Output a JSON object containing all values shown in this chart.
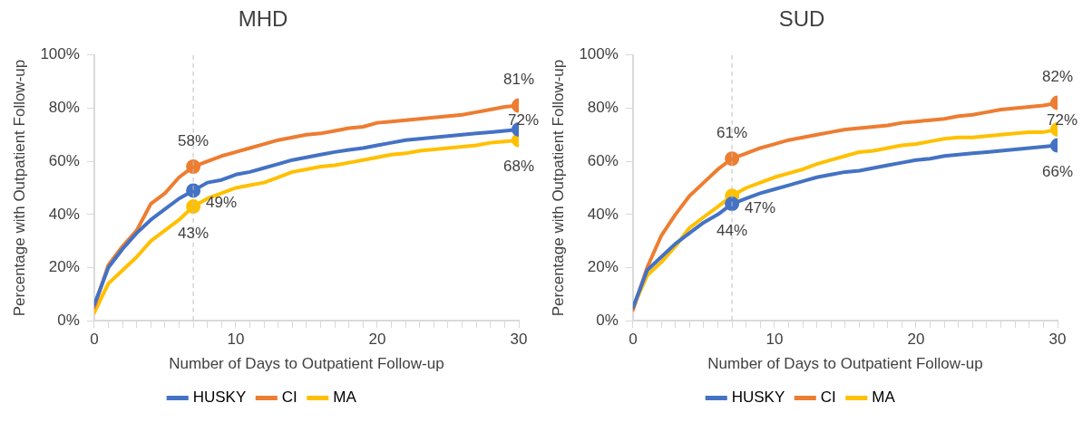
{
  "chart_data": [
    {
      "type": "line",
      "title": "MHD",
      "xlabel": "Number of Days to Outpatient Follow-up",
      "ylabel": "Percentage with Outpatient Follow-up",
      "x": [
        0,
        1,
        2,
        3,
        4,
        5,
        6,
        7,
        8,
        9,
        10,
        11,
        12,
        13,
        14,
        15,
        16,
        17,
        18,
        19,
        20,
        21,
        22,
        23,
        24,
        25,
        26,
        27,
        28,
        29,
        30
      ],
      "xlim": [
        0,
        30
      ],
      "xticks": [
        0,
        {
          "value": 1,
          "label": null
        },
        {
          "value": 2,
          "label": null
        },
        {
          "value": 3,
          "label": null
        },
        {
          "value": 4,
          "label": null
        },
        {
          "value": 5,
          "label": null
        },
        {
          "value": 6,
          "label": null
        },
        {
          "value": 7,
          "label": null
        },
        {
          "value": 8,
          "label": null
        },
        {
          "value": 9,
          "label": null
        },
        10,
        {
          "value": 11,
          "label": null
        },
        {
          "value": 12,
          "label": null
        },
        {
          "value": 13,
          "label": null
        },
        {
          "value": 14,
          "label": null
        },
        {
          "value": 15,
          "label": null
        },
        {
          "value": 16,
          "label": null
        },
        {
          "value": 17,
          "label": null
        },
        {
          "value": 18,
          "label": null
        },
        {
          "value": 19,
          "label": null
        },
        20,
        {
          "value": 21,
          "label": null
        },
        {
          "value": 22,
          "label": null
        },
        {
          "value": 23,
          "label": null
        },
        {
          "value": 24,
          "label": null
        },
        {
          "value": 25,
          "label": null
        },
        {
          "value": 26,
          "label": null
        },
        {
          "value": 27,
          "label": null
        },
        {
          "value": 28,
          "label": null
        },
        {
          "value": 29,
          "label": null
        },
        30
      ],
      "ylim": [
        0,
        100
      ],
      "yticks": [
        {
          "value": 0,
          "label": "0%"
        },
        {
          "value": 20,
          "label": "20%"
        },
        {
          "value": 40,
          "label": "40%"
        },
        {
          "value": 60,
          "label": "60%"
        },
        {
          "value": 80,
          "label": "80%"
        },
        {
          "value": 100,
          "label": "100%"
        }
      ],
      "grid": false,
      "legend": "bottom",
      "line_style": "solid",
      "ref_lines": [
        {
          "axis": "x",
          "value": 7,
          "label": null,
          "color": "#bfbfbf",
          "line_style": "dashed"
        }
      ],
      "series": [
        {
          "name": "HUSKY",
          "color": "#4472c4",
          "values": [
            6,
            20,
            27,
            33,
            38,
            42,
            46,
            49,
            52,
            53,
            55,
            56,
            57.5,
            59,
            60.5,
            61.5,
            62.5,
            63.5,
            64.3,
            65,
            66,
            67,
            68,
            68.5,
            69,
            69.5,
            70,
            70.5,
            71,
            71.5,
            72
          ],
          "value_labels": [
            null,
            null,
            null,
            null,
            null,
            null,
            null,
            "49%",
            null,
            null,
            null,
            null,
            null,
            null,
            null,
            null,
            null,
            null,
            null,
            null,
            null,
            null,
            null,
            null,
            null,
            null,
            null,
            null,
            null,
            null,
            "72%"
          ]
        },
        {
          "name": "CI",
          "color": "#ed7d31",
          "values": [
            5,
            21,
            28,
            34,
            44,
            48,
            54,
            58,
            60,
            62,
            63.5,
            65,
            66.5,
            68,
            69,
            70,
            70.5,
            71.5,
            72.5,
            73,
            74.5,
            75,
            75.5,
            76,
            76.5,
            77,
            77.5,
            78.5,
            79.5,
            80.5,
            81
          ],
          "value_labels": [
            null,
            null,
            null,
            null,
            null,
            null,
            null,
            "58%",
            null,
            null,
            null,
            null,
            null,
            null,
            null,
            null,
            null,
            null,
            null,
            null,
            null,
            null,
            null,
            null,
            null,
            null,
            null,
            null,
            null,
            null,
            "81%"
          ]
        },
        {
          "name": "MA",
          "color": "#ffc000",
          "values": [
            3,
            14,
            19,
            24,
            30,
            34,
            38,
            43,
            46,
            48,
            50,
            51,
            52,
            54,
            56,
            57,
            58,
            58.5,
            59.5,
            60.5,
            61.5,
            62.5,
            63,
            64,
            64.5,
            65,
            65.5,
            66,
            67,
            67.5,
            68
          ],
          "value_labels": [
            null,
            null,
            null,
            null,
            null,
            null,
            null,
            "43%",
            null,
            null,
            null,
            null,
            null,
            null,
            null,
            null,
            null,
            null,
            null,
            null,
            null,
            null,
            null,
            null,
            null,
            null,
            null,
            null,
            null,
            null,
            "68%"
          ]
        }
      ]
    },
    {
      "type": "line",
      "title": "SUD",
      "xlabel": "Number of Days to Outpatient Follow-up",
      "ylabel": "Percentage with Outpatient Follow-up",
      "x": [
        0,
        1,
        2,
        3,
        4,
        5,
        6,
        7,
        8,
        9,
        10,
        11,
        12,
        13,
        14,
        15,
        16,
        17,
        18,
        19,
        20,
        21,
        22,
        23,
        24,
        25,
        26,
        27,
        28,
        29,
        30
      ],
      "xlim": [
        0,
        30
      ],
      "xticks": [
        0,
        {
          "value": 1,
          "label": null
        },
        {
          "value": 2,
          "label": null
        },
        {
          "value": 3,
          "label": null
        },
        {
          "value": 4,
          "label": null
        },
        {
          "value": 5,
          "label": null
        },
        {
          "value": 6,
          "label": null
        },
        {
          "value": 7,
          "label": null
        },
        {
          "value": 8,
          "label": null
        },
        {
          "value": 9,
          "label": null
        },
        10,
        {
          "value": 11,
          "label": null
        },
        {
          "value": 12,
          "label": null
        },
        {
          "value": 13,
          "label": null
        },
        {
          "value": 14,
          "label": null
        },
        {
          "value": 15,
          "label": null
        },
        {
          "value": 16,
          "label": null
        },
        {
          "value": 17,
          "label": null
        },
        {
          "value": 18,
          "label": null
        },
        {
          "value": 19,
          "label": null
        },
        20,
        {
          "value": 21,
          "label": null
        },
        {
          "value": 22,
          "label": null
        },
        {
          "value": 23,
          "label": null
        },
        {
          "value": 24,
          "label": null
        },
        {
          "value": 25,
          "label": null
        },
        {
          "value": 26,
          "label": null
        },
        {
          "value": 27,
          "label": null
        },
        {
          "value": 28,
          "label": null
        },
        {
          "value": 29,
          "label": null
        },
        30
      ],
      "ylim": [
        0,
        100
      ],
      "yticks": [
        {
          "value": 0,
          "label": "0%"
        },
        {
          "value": 20,
          "label": "20%"
        },
        {
          "value": 40,
          "label": "40%"
        },
        {
          "value": 60,
          "label": "60%"
        },
        {
          "value": 80,
          "label": "80%"
        },
        {
          "value": 100,
          "label": "100%"
        }
      ],
      "grid": false,
      "legend": "bottom",
      "line_style": "solid",
      "ref_lines": [
        {
          "axis": "x",
          "value": 7,
          "label": null,
          "color": "#bfbfbf",
          "line_style": "dashed"
        }
      ],
      "series": [
        {
          "name": "HUSKY",
          "color": "#4472c4",
          "values": [
            5,
            19,
            24,
            29,
            33,
            37,
            40,
            44,
            46,
            48,
            49.5,
            51,
            52.5,
            54,
            55,
            56,
            56.5,
            57.5,
            58.5,
            59.5,
            60.5,
            61,
            62,
            62.5,
            63,
            63.5,
            64,
            64.5,
            65,
            65.5,
            66
          ],
          "value_labels": [
            null,
            null,
            null,
            null,
            null,
            null,
            null,
            "44%",
            null,
            null,
            null,
            null,
            null,
            null,
            null,
            null,
            null,
            null,
            null,
            null,
            null,
            null,
            null,
            null,
            null,
            null,
            null,
            null,
            null,
            null,
            "66%"
          ]
        },
        {
          "name": "CI",
          "color": "#ed7d31",
          "values": [
            4,
            20,
            32,
            40,
            47,
            52,
            57,
            61,
            63,
            65,
            66.5,
            68,
            69,
            70,
            71,
            72,
            72.5,
            73,
            73.5,
            74.5,
            75,
            75.5,
            76,
            77,
            77.5,
            78.5,
            79.5,
            80,
            80.5,
            81,
            82
          ],
          "value_labels": [
            null,
            null,
            null,
            null,
            null,
            null,
            null,
            "61%",
            null,
            null,
            null,
            null,
            null,
            null,
            null,
            null,
            null,
            null,
            null,
            null,
            null,
            null,
            null,
            null,
            null,
            null,
            null,
            null,
            null,
            null,
            "82%"
          ]
        },
        {
          "name": "MA",
          "color": "#ffc000",
          "values": [
            5,
            17,
            22,
            28,
            35,
            39,
            43,
            47,
            50,
            52,
            54,
            55.5,
            57,
            59,
            60.5,
            62,
            63.5,
            64,
            65,
            66,
            66.5,
            67.5,
            68.5,
            69,
            69,
            69.5,
            70,
            70.5,
            71,
            71,
            72
          ],
          "value_labels": [
            null,
            null,
            null,
            null,
            null,
            null,
            null,
            "47%",
            null,
            null,
            null,
            null,
            null,
            null,
            null,
            null,
            null,
            null,
            null,
            null,
            null,
            null,
            null,
            null,
            null,
            null,
            null,
            null,
            null,
            null,
            "72%"
          ]
        }
      ]
    }
  ]
}
